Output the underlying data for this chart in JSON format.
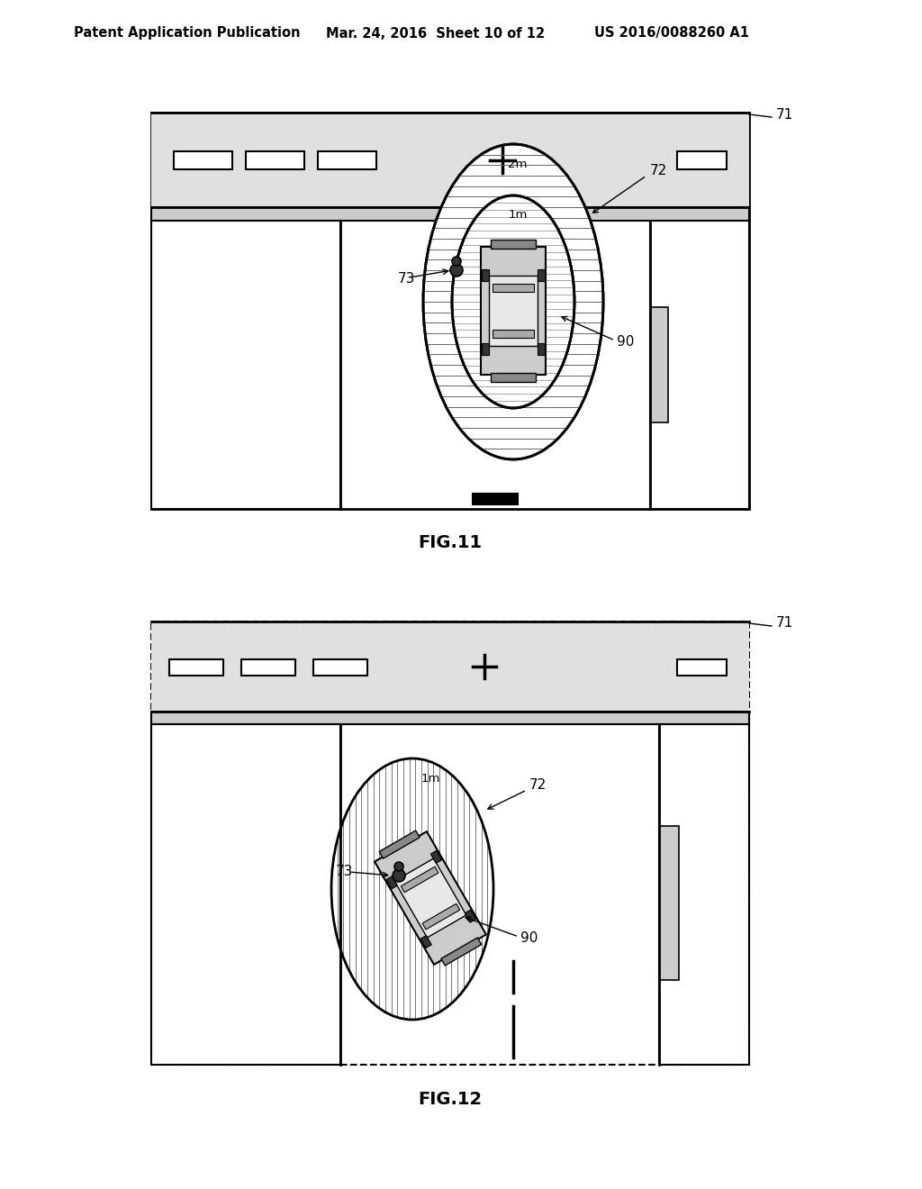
{
  "title_left": "Patent Application Publication",
  "title_mid": "Mar. 24, 2016  Sheet 10 of 12",
  "title_right": "US 2016/0088260 A1",
  "fig11_label": "FIG.11",
  "fig12_label": "FIG.12",
  "bg_color": "#ffffff"
}
